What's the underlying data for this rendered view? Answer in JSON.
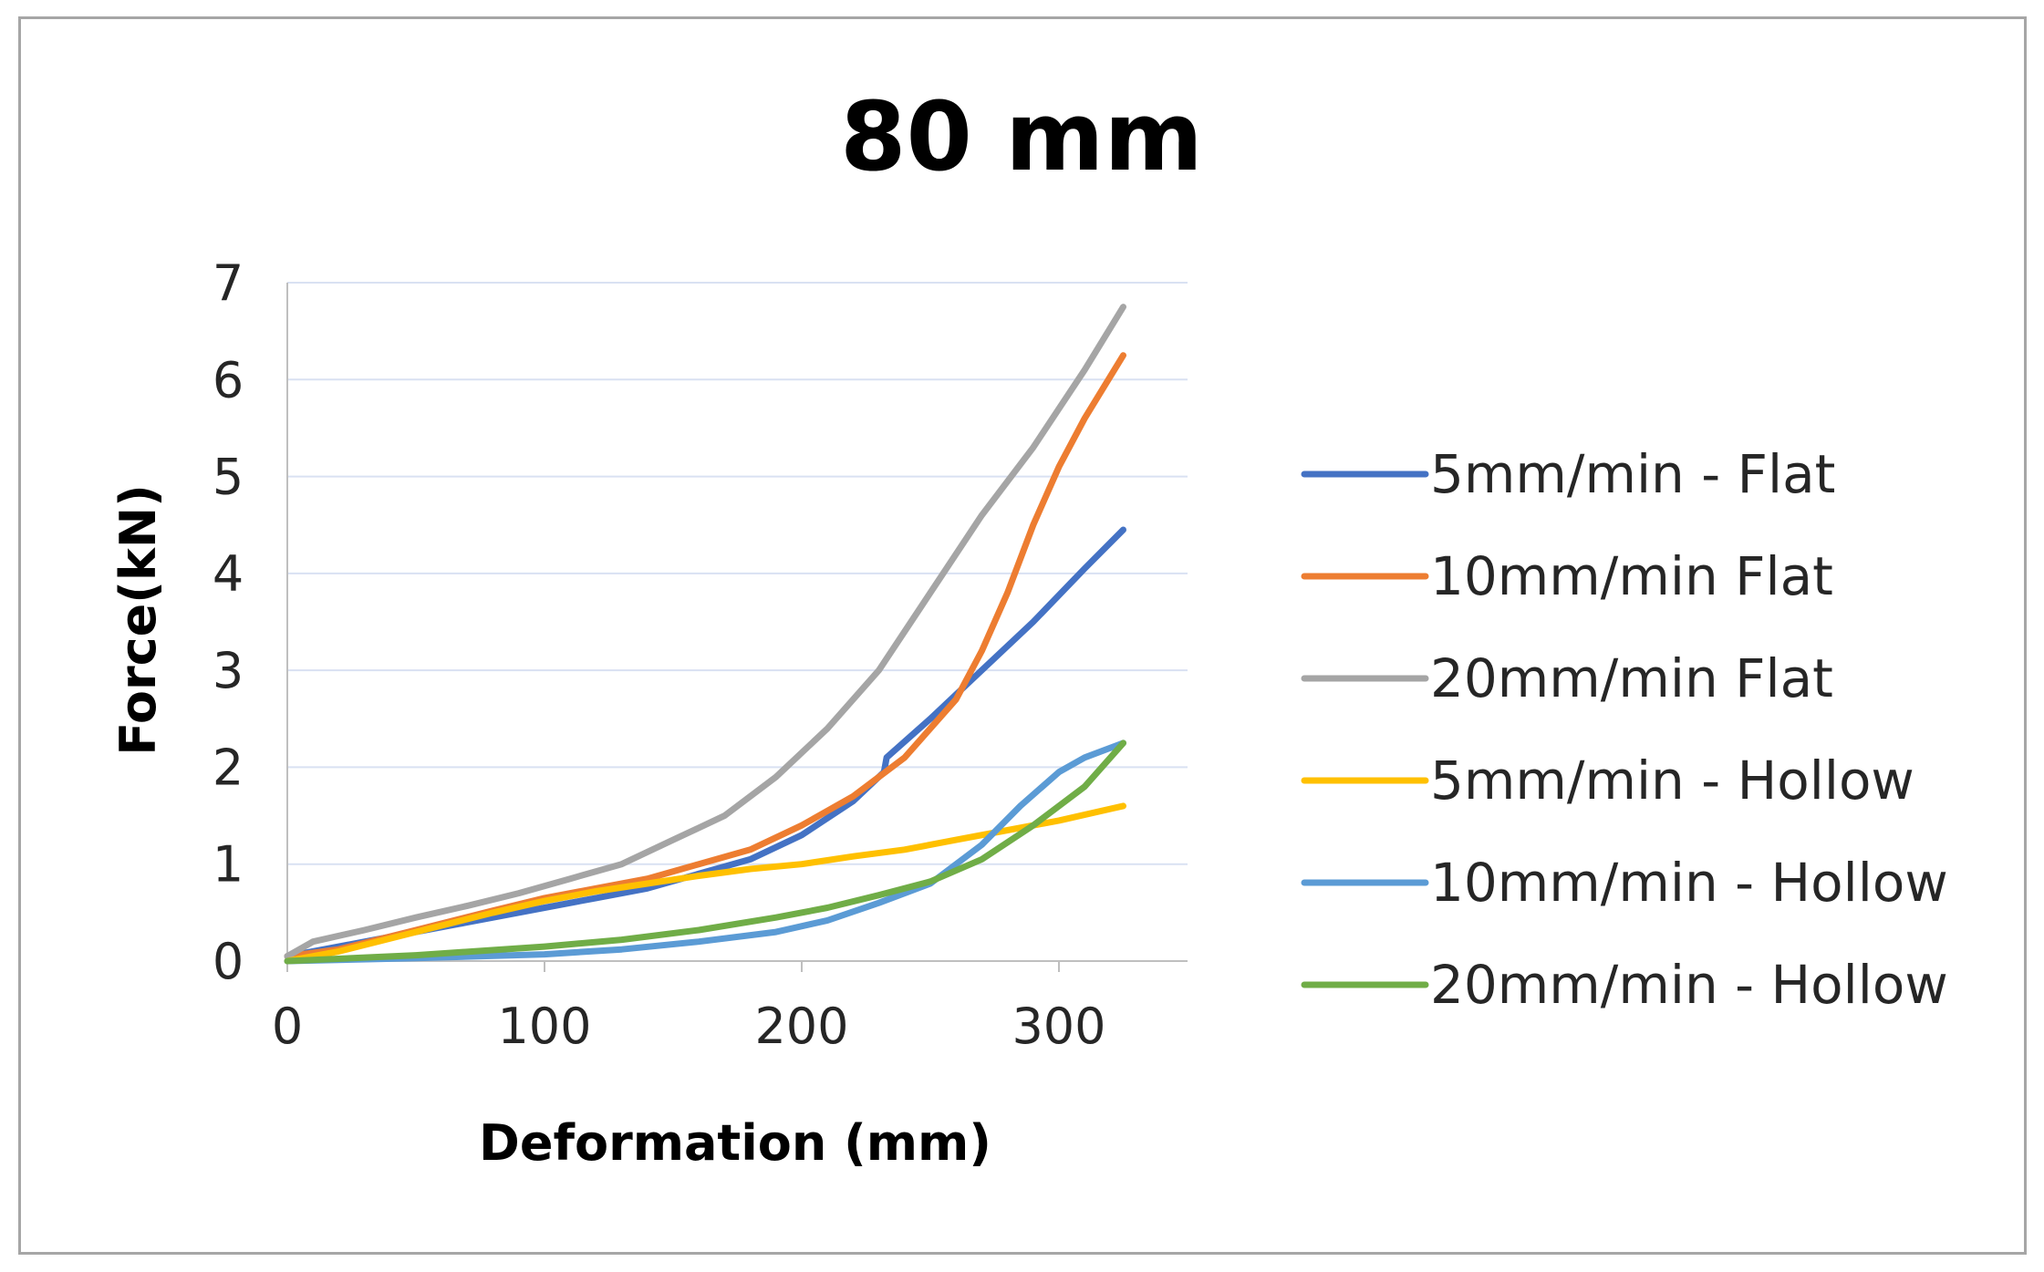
{
  "chart_data": {
    "type": "line",
    "title": "80 mm",
    "xlabel": "Deformation (mm)",
    "ylabel": "Force(kN)",
    "xlim": [
      0,
      350
    ],
    "ylim": [
      0,
      7
    ],
    "xticks": [
      0,
      100,
      200,
      300
    ],
    "yticks": [
      0,
      1,
      2,
      3,
      4,
      5,
      6,
      7
    ],
    "grid": "horizontal",
    "legend_position": "right",
    "series": [
      {
        "name": "5mm/min - Flat",
        "color": "#4472C4",
        "points": [
          [
            0,
            0.05
          ],
          [
            20,
            0.15
          ],
          [
            50,
            0.3
          ],
          [
            80,
            0.45
          ],
          [
            100,
            0.55
          ],
          [
            120,
            0.65
          ],
          [
            140,
            0.75
          ],
          [
            160,
            0.9
          ],
          [
            180,
            1.05
          ],
          [
            200,
            1.3
          ],
          [
            220,
            1.65
          ],
          [
            232,
            1.95
          ],
          [
            233,
            2.1
          ],
          [
            250,
            2.5
          ],
          [
            270,
            3.0
          ],
          [
            290,
            3.5
          ],
          [
            310,
            4.05
          ],
          [
            325,
            4.45
          ]
        ]
      },
      {
        "name": "10mm/min Flat",
        "color": "#ED7D31",
        "points": [
          [
            0,
            0.05
          ],
          [
            20,
            0.12
          ],
          [
            50,
            0.32
          ],
          [
            80,
            0.52
          ],
          [
            100,
            0.65
          ],
          [
            120,
            0.75
          ],
          [
            140,
            0.85
          ],
          [
            160,
            1.0
          ],
          [
            180,
            1.15
          ],
          [
            200,
            1.4
          ],
          [
            220,
            1.7
          ],
          [
            240,
            2.1
          ],
          [
            260,
            2.7
          ],
          [
            270,
            3.2
          ],
          [
            280,
            3.8
          ],
          [
            290,
            4.5
          ],
          [
            300,
            5.1
          ],
          [
            310,
            5.6
          ],
          [
            325,
            6.25
          ]
        ]
      },
      {
        "name": "20mm/min Flat",
        "color": "#A5A5A5",
        "points": [
          [
            0,
            0.05
          ],
          [
            10,
            0.2
          ],
          [
            30,
            0.32
          ],
          [
            50,
            0.45
          ],
          [
            70,
            0.57
          ],
          [
            90,
            0.7
          ],
          [
            110,
            0.85
          ],
          [
            130,
            1.0
          ],
          [
            150,
            1.25
          ],
          [
            170,
            1.5
          ],
          [
            190,
            1.9
          ],
          [
            210,
            2.4
          ],
          [
            230,
            3.0
          ],
          [
            250,
            3.8
          ],
          [
            270,
            4.6
          ],
          [
            290,
            5.3
          ],
          [
            310,
            6.1
          ],
          [
            325,
            6.75
          ]
        ]
      },
      {
        "name": "5mm/min - Hollow",
        "color": "#FFC000",
        "points": [
          [
            0,
            0.0
          ],
          [
            20,
            0.1
          ],
          [
            50,
            0.3
          ],
          [
            80,
            0.5
          ],
          [
            100,
            0.62
          ],
          [
            120,
            0.72
          ],
          [
            140,
            0.8
          ],
          [
            160,
            0.88
          ],
          [
            180,
            0.95
          ],
          [
            200,
            1.0
          ],
          [
            220,
            1.08
          ],
          [
            240,
            1.15
          ],
          [
            260,
            1.25
          ],
          [
            280,
            1.35
          ],
          [
            300,
            1.45
          ],
          [
            325,
            1.6
          ]
        ]
      },
      {
        "name": "10mm/min - Hollow",
        "color": "#5B9BD5",
        "points": [
          [
            0,
            0.0
          ],
          [
            50,
            0.03
          ],
          [
            100,
            0.07
          ],
          [
            130,
            0.12
          ],
          [
            160,
            0.2
          ],
          [
            190,
            0.3
          ],
          [
            210,
            0.42
          ],
          [
            230,
            0.6
          ],
          [
            250,
            0.8
          ],
          [
            270,
            1.2
          ],
          [
            285,
            1.6
          ],
          [
            300,
            1.95
          ],
          [
            310,
            2.1
          ],
          [
            325,
            2.25
          ]
        ]
      },
      {
        "name": "20mm/min - Hollow",
        "color": "#70AD47",
        "points": [
          [
            0,
            0.0
          ],
          [
            50,
            0.06
          ],
          [
            100,
            0.15
          ],
          [
            130,
            0.22
          ],
          [
            160,
            0.32
          ],
          [
            190,
            0.45
          ],
          [
            210,
            0.55
          ],
          [
            230,
            0.68
          ],
          [
            250,
            0.82
          ],
          [
            270,
            1.05
          ],
          [
            290,
            1.4
          ],
          [
            310,
            1.8
          ],
          [
            325,
            2.25
          ]
        ]
      }
    ]
  }
}
